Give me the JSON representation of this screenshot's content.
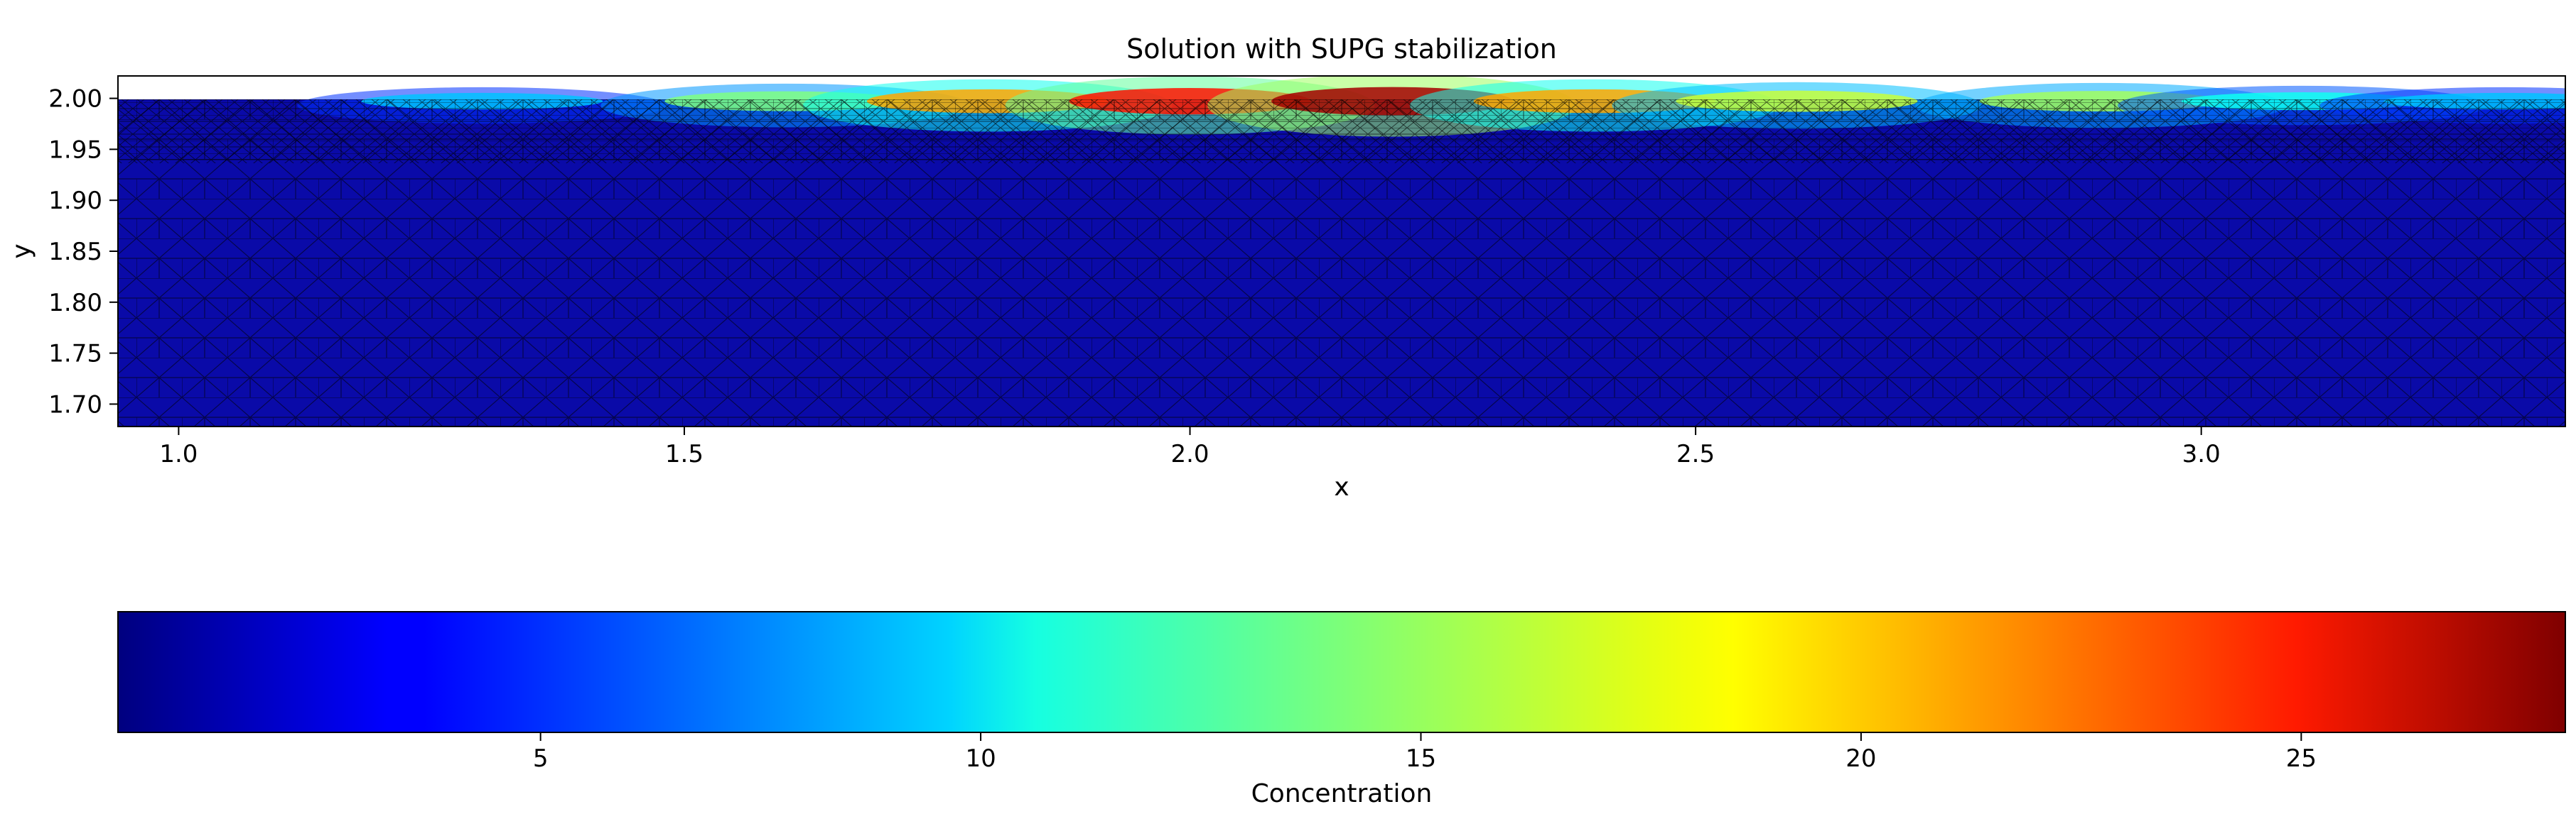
{
  "chart_data": [
    {
      "type": "heatmap",
      "title": "Solution with SUPG stabilization",
      "xlabel": "x",
      "ylabel": "y",
      "xlim": [
        0.94,
        3.36
      ],
      "ylim": [
        1.678,
        2.022
      ],
      "data_extent_y": [
        1.678,
        2.0
      ],
      "xticks": [
        1.0,
        1.5,
        2.0,
        2.5,
        3.0
      ],
      "xtick_labels": [
        "1.0",
        "1.5",
        "2.0",
        "2.5",
        "3.0"
      ],
      "yticks": [
        2.0,
        1.95,
        1.9,
        1.85,
        1.8,
        1.75,
        1.7
      ],
      "ytick_labels": [
        "2.00",
        "1.95",
        "1.90",
        "1.85",
        "1.80",
        "1.75",
        "1.70"
      ],
      "colormap": "jet",
      "mesh": "triangular, black edges",
      "plume": {
        "description": "high-concentration layer along top boundary y=2.0",
        "peak_location": {
          "x": 2.1,
          "y": 2.0
        },
        "peak_value": 27,
        "points": [
          {
            "x": 1.3,
            "v": 9
          },
          {
            "x": 1.6,
            "v": 14
          },
          {
            "x": 1.8,
            "v": 20
          },
          {
            "x": 2.0,
            "v": 24
          },
          {
            "x": 2.2,
            "v": 27
          },
          {
            "x": 2.4,
            "v": 20
          },
          {
            "x": 2.6,
            "v": 16
          },
          {
            "x": 2.9,
            "v": 15
          },
          {
            "x": 3.1,
            "v": 11
          },
          {
            "x": 3.3,
            "v": 9
          }
        ],
        "background_value": 0.5
      }
    },
    {
      "type": "colorbar",
      "label": "Concentration",
      "range": [
        0.2,
        28.0
      ],
      "ticks": [
        5,
        10,
        15,
        20,
        25
      ],
      "tick_labels": [
        "5",
        "10",
        "15",
        "20",
        "25"
      ],
      "colormap": "jet"
    }
  ]
}
